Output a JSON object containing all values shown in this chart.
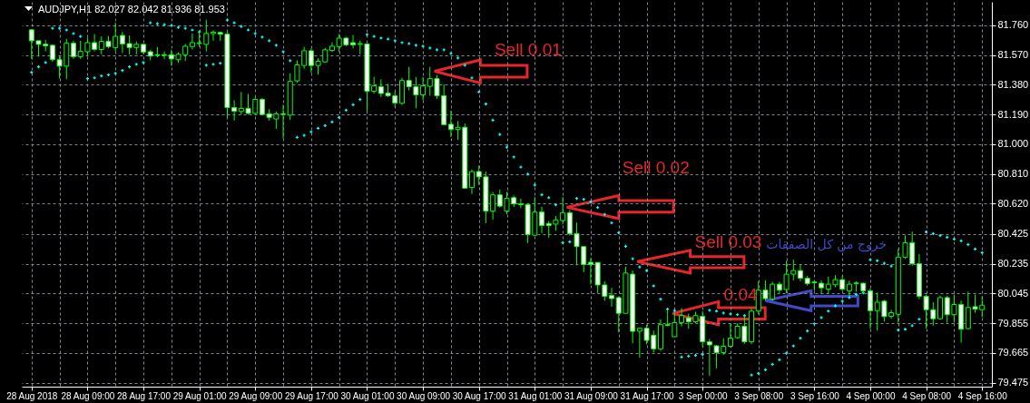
{
  "chart_data": {
    "type": "candlestick",
    "title": "AUDJPY,H1 82.027 82.042 81.936 81.953",
    "categories": [
      "28 Aug 2018",
      null,
      null,
      null,
      null,
      null,
      null,
      null,
      "28 Aug 09:00",
      null,
      null,
      null,
      null,
      null,
      null,
      null,
      "28 Aug 17:00",
      null,
      null,
      null,
      null,
      null,
      null,
      null,
      "29 Aug 01:00",
      null,
      null,
      null,
      null,
      null,
      null,
      null,
      "29 Aug 09:00",
      null,
      null,
      null,
      null,
      null,
      null,
      null,
      "29 Aug 17:00",
      null,
      null,
      null,
      null,
      null,
      null,
      null,
      "30 Aug 01:00",
      null,
      null,
      null,
      null,
      null,
      null,
      null,
      "30 Aug 09:00",
      null,
      null,
      null,
      null,
      null,
      null,
      null,
      "30 Aug 17:00",
      null,
      null,
      null,
      null,
      null,
      null,
      null,
      "31 Aug 01:00",
      null,
      null,
      null,
      null,
      null,
      null,
      null,
      "31 Aug 09:00",
      null,
      null,
      null,
      null,
      null,
      null,
      null,
      "31 Aug 17:00",
      null,
      null,
      null,
      null,
      null,
      null,
      null,
      "3 Sep 00:00",
      null,
      null,
      null,
      null,
      null,
      null,
      null,
      "3 Sep 08:00",
      null,
      null,
      null,
      null,
      null,
      null,
      null,
      "3 Sep 16:00",
      null,
      null,
      null,
      null,
      null,
      null,
      null,
      "4 Sep 00:00",
      null,
      null,
      null,
      null,
      null,
      null,
      null,
      "4 Sep 08:00",
      null,
      null,
      null,
      null,
      null,
      null,
      null,
      "4 Sep 16:00"
    ],
    "ohlc": [
      [
        81.731,
        81.737,
        81.545,
        81.661
      ],
      [
        81.661,
        81.664,
        81.56,
        81.638
      ],
      [
        81.639,
        81.666,
        81.593,
        81.629
      ],
      [
        81.632,
        81.638,
        81.526,
        81.54
      ],
      [
        81.54,
        81.564,
        81.42,
        81.499
      ],
      [
        81.499,
        81.674,
        81.415,
        81.645
      ],
      [
        81.645,
        81.661,
        81.545,
        81.56
      ],
      [
        81.56,
        81.661,
        81.545,
        81.593
      ],
      [
        81.591,
        81.68,
        81.564,
        81.649
      ],
      [
        81.649,
        81.704,
        81.593,
        81.606
      ],
      [
        81.606,
        81.689,
        81.574,
        81.657
      ],
      [
        81.657,
        81.691,
        81.612,
        81.624
      ],
      [
        81.618,
        81.776,
        81.593,
        81.689
      ],
      [
        81.695,
        81.718,
        81.583,
        81.641
      ],
      [
        81.643,
        81.695,
        81.574,
        81.618
      ],
      [
        81.618,
        81.657,
        81.574,
        81.638
      ],
      [
        81.638,
        81.641,
        81.574,
        81.589
      ],
      [
        81.591,
        81.603,
        81.536,
        81.563
      ],
      [
        81.572,
        81.622,
        81.555,
        81.568
      ],
      [
        81.572,
        81.593,
        81.545,
        81.568
      ],
      [
        81.572,
        81.603,
        81.501,
        81.545
      ],
      [
        81.54,
        81.587,
        81.52,
        81.574
      ],
      [
        81.572,
        81.641,
        81.532,
        81.626
      ],
      [
        81.624,
        81.708,
        81.606,
        81.649
      ],
      [
        81.643,
        81.724,
        81.622,
        81.647
      ],
      [
        81.638,
        81.795,
        81.593,
        81.708
      ],
      [
        81.707,
        81.727,
        81.661,
        81.716
      ],
      [
        81.714,
        81.718,
        81.661,
        81.703
      ],
      [
        81.703,
        81.718,
        81.165,
        81.234
      ],
      [
        81.234,
        81.28,
        81.151,
        81.21
      ],
      [
        81.209,
        81.334,
        81.19,
        81.229
      ],
      [
        81.229,
        81.321,
        81.19,
        81.197
      ],
      [
        81.197,
        81.299,
        81.19,
        81.286
      ],
      [
        81.286,
        81.295,
        81.184,
        81.19
      ],
      [
        81.194,
        81.223,
        81.151,
        81.171
      ],
      [
        81.161,
        81.209,
        81.098,
        81.194
      ],
      [
        81.194,
        81.253,
        81.036,
        81.19
      ],
      [
        81.186,
        81.453,
        81.155,
        81.401
      ],
      [
        81.405,
        81.536,
        81.392,
        81.507
      ],
      [
        81.503,
        81.622,
        81.482,
        81.597
      ],
      [
        81.597,
        81.612,
        81.455,
        81.503
      ],
      [
        81.503,
        81.549,
        81.445,
        81.53
      ],
      [
        81.526,
        81.616,
        81.52,
        81.603
      ],
      [
        81.599,
        81.651,
        81.589,
        81.626
      ],
      [
        81.624,
        81.704,
        81.589,
        81.678
      ],
      [
        81.678,
        81.685,
        81.626,
        81.635
      ],
      [
        81.649,
        81.697,
        81.612,
        81.635
      ],
      [
        81.638,
        81.662,
        81.574,
        81.643
      ],
      [
        81.641,
        81.645,
        81.209,
        81.338
      ],
      [
        81.338,
        81.43,
        81.324,
        81.373
      ],
      [
        81.367,
        81.415,
        81.301,
        81.324
      ],
      [
        81.327,
        81.386,
        81.301,
        81.309
      ],
      [
        81.309,
        81.338,
        81.238,
        81.263
      ],
      [
        81.261,
        81.424,
        81.252,
        81.407
      ],
      [
        81.407,
        81.494,
        81.344,
        81.367
      ],
      [
        81.367,
        81.43,
        81.229,
        81.315
      ],
      [
        81.315,
        81.43,
        81.28,
        81.373
      ],
      [
        81.37,
        81.494,
        81.309,
        81.419
      ],
      [
        81.419,
        81.443,
        81.29,
        81.309
      ],
      [
        81.309,
        81.382,
        81.123,
        81.125
      ],
      [
        81.127,
        81.213,
        81.046,
        81.094
      ],
      [
        81.094,
        81.148,
        81.027,
        81.108
      ],
      [
        81.108,
        81.132,
        80.714,
        80.719
      ],
      [
        80.723,
        80.839,
        80.681,
        80.825
      ],
      [
        80.825,
        80.863,
        80.739,
        80.791
      ],
      [
        80.791,
        80.825,
        80.495,
        80.572
      ],
      [
        80.572,
        80.695,
        80.518,
        80.676
      ],
      [
        80.676,
        80.71,
        80.595,
        80.604
      ],
      [
        80.572,
        80.695,
        80.552,
        80.653
      ],
      [
        80.658,
        80.672,
        80.598,
        80.618
      ],
      [
        80.618,
        80.653,
        80.591,
        80.614
      ],
      [
        80.614,
        80.624,
        80.368,
        80.422
      ],
      [
        80.418,
        80.662,
        80.412,
        80.566
      ],
      [
        80.566,
        80.601,
        80.431,
        80.48
      ],
      [
        80.493,
        80.509,
        80.403,
        80.48
      ],
      [
        80.489,
        80.541,
        80.447,
        80.516
      ],
      [
        80.512,
        80.662,
        80.489,
        80.562
      ],
      [
        80.562,
        80.579,
        80.416,
        80.428
      ],
      [
        80.428,
        80.499,
        80.226,
        80.345
      ],
      [
        80.345,
        80.349,
        80.182,
        80.231
      ],
      [
        80.245,
        80.272,
        80.105,
        80.23
      ],
      [
        80.244,
        80.244,
        80.048,
        80.1
      ],
      [
        80.1,
        80.124,
        79.999,
        80.028
      ],
      [
        80.034,
        80.082,
        79.961,
        80.013
      ],
      [
        80.019,
        80.028,
        79.798,
        79.919
      ],
      [
        79.919,
        80.217,
        79.919,
        80.176
      ],
      [
        80.169,
        80.192,
        79.727,
        79.804
      ],
      [
        79.804,
        79.827,
        79.635,
        79.823
      ],
      [
        79.823,
        79.846,
        79.721,
        79.746
      ],
      [
        79.779,
        79.808,
        79.668,
        79.692
      ],
      [
        79.692,
        79.881,
        79.679,
        79.846
      ],
      [
        79.846,
        79.938,
        79.836,
        79.842
      ],
      [
        79.769,
        79.923,
        79.769,
        79.859
      ],
      [
        79.859,
        79.952,
        79.836,
        79.904
      ],
      [
        79.89,
        79.917,
        79.821,
        79.865
      ],
      [
        79.865,
        79.929,
        79.855,
        79.904
      ],
      [
        79.9,
        79.933,
        79.705,
        79.737
      ],
      [
        79.737,
        79.756,
        79.52,
        79.717
      ],
      [
        79.711,
        79.717,
        79.567,
        79.668
      ],
      [
        79.668,
        79.76,
        79.654,
        79.708
      ],
      [
        79.708,
        79.855,
        79.702,
        79.76
      ],
      [
        79.763,
        79.855,
        79.756,
        79.836
      ],
      [
        79.836,
        79.904,
        79.725,
        79.737
      ],
      [
        79.737,
        79.952,
        79.721,
        79.933
      ],
      [
        79.933,
        80.124,
        79.913,
        80.067
      ],
      [
        80.067,
        80.13,
        79.999,
        80.013
      ],
      [
        80.009,
        80.119,
        79.999,
        80.105
      ],
      [
        80.105,
        80.12,
        80.048,
        80.067
      ],
      [
        80.071,
        80.255,
        80.048,
        80.169
      ],
      [
        80.169,
        80.263,
        80.13,
        80.192
      ],
      [
        80.192,
        80.234,
        80.124,
        80.143
      ],
      [
        80.143,
        80.159,
        80.096,
        80.109
      ],
      [
        80.119,
        80.13,
        80.063,
        80.115
      ],
      [
        80.111,
        80.13,
        80.042,
        80.082
      ],
      [
        80.073,
        80.153,
        80.042,
        80.105
      ],
      [
        80.101,
        80.163,
        80.086,
        80.134
      ],
      [
        80.134,
        80.159,
        80.063,
        80.073
      ],
      [
        80.063,
        80.128,
        80.028,
        80.105
      ],
      [
        80.109,
        80.124,
        80.057,
        80.113
      ],
      [
        80.111,
        80.115,
        80.048,
        80.063
      ],
      [
        80.063,
        80.077,
        79.821,
        79.936
      ],
      [
        79.936,
        80.051,
        79.808,
        79.99
      ],
      [
        79.996,
        80.005,
        79.865,
        79.898
      ],
      [
        79.9,
        79.942,
        79.884,
        79.923
      ],
      [
        79.913,
        80.332,
        79.859,
        80.278
      ],
      [
        80.278,
        80.416,
        80.268,
        80.37
      ],
      [
        80.37,
        80.441,
        80.224,
        80.236
      ],
      [
        80.236,
        80.297,
        80.009,
        80.028
      ],
      [
        80.028,
        80.038,
        79.821,
        79.942
      ],
      [
        79.942,
        79.99,
        79.84,
        79.884
      ],
      [
        79.884,
        80.032,
        79.877,
        80.019
      ],
      [
        80.019,
        80.032,
        79.859,
        79.91
      ],
      [
        79.91,
        80.038,
        79.859,
        79.975
      ],
      [
        79.975,
        80.0,
        79.731,
        79.817
      ],
      [
        79.821,
        80.057,
        79.817,
        79.956
      ],
      [
        79.961,
        80.038,
        79.923,
        79.946
      ],
      [
        79.942,
        80.028,
        79.894,
        79.971
      ]
    ],
    "color": "#00ff00",
    "colors": [
      "#ffffff",
      "#ffffff",
      "#ffffff",
      "#ffffff",
      "#ffffff",
      "#000000",
      "#ffffff",
      "#000000",
      "#000000",
      "#ffffff",
      "#000000",
      "#ffffff",
      "#000000",
      "#ffffff",
      "#ffffff",
      "#000000",
      "#ffffff",
      "#ffffff",
      "#ffffff",
      "#ffffff",
      "#ffffff",
      "#000000",
      "#000000",
      "#000000",
      "#000000",
      "#000000",
      "#000000",
      "#ffffff",
      "#ffffff",
      "#ffffff",
      "#000000",
      "#ffffff",
      "#000000",
      "#ffffff",
      "#ffffff",
      "#000000",
      "#ffffff",
      "#000000",
      "#000000",
      "#000000",
      "#ffffff",
      "#000000",
      "#000000",
      "#000000",
      "#000000",
      "#ffffff",
      "#ffffff",
      "#000000",
      "#ffffff",
      "#000000",
      "#ffffff",
      "#ffffff",
      "#ffffff",
      "#000000",
      "#ffffff",
      "#ffffff",
      "#000000",
      "#000000",
      "#ffffff",
      "#ffffff",
      "#ffffff",
      "#000000",
      "#ffffff",
      "#000000",
      "#ffffff",
      "#ffffff",
      "#000000",
      "#ffffff",
      "#000000",
      "#ffffff",
      "#ffffff",
      "#ffffff",
      "#000000",
      "#ffffff",
      "#ffffff",
      "#000000",
      "#000000",
      "#ffffff",
      "#ffffff",
      "#ffffff",
      "#ffffff",
      "#ffffff",
      "#ffffff",
      "#ffffff",
      "#ffffff",
      "#000000",
      "#ffffff",
      "#000000",
      "#ffffff",
      "#ffffff",
      "#000000",
      "#ffffff",
      "#000000",
      "#000000",
      "#ffffff",
      "#000000",
      "#ffffff",
      "#ffffff",
      "#ffffff",
      "#000000",
      "#000000",
      "#000000",
      "#ffffff",
      "#000000",
      "#000000",
      "#ffffff",
      "#000000",
      "#ffffff",
      "#000000",
      "#000000",
      "#ffffff",
      "#ffffff",
      "#ffffff",
      "#ffffff",
      "#000000",
      "#000000",
      "#ffffff",
      "#000000",
      "#000000",
      "#ffffff",
      "#ffffff",
      "#000000",
      "#ffffff",
      "#000000",
      "#000000",
      "#000000",
      "#ffffff",
      "#ffffff",
      "#ffffff",
      "#ffffff",
      "#000000",
      "#ffffff",
      "#000000",
      "#ffffff",
      "#000000",
      "#ffffff",
      "#000000"
    ],
    "series": [
      {
        "type": "scatter",
        "color": "#00ffff",
        "values": [
          81.459,
          81.494,
          81.522,
          81.741,
          81.741,
          81.73,
          81.707,
          81.689,
          81.419,
          81.424,
          81.436,
          81.443,
          81.453,
          81.471,
          81.494,
          81.511,
          81.522,
          81.776,
          81.77,
          81.764,
          81.759,
          81.747,
          81.741,
          81.73,
          81.718,
          81.505,
          81.511,
          81.517,
          81.793,
          81.776,
          81.753,
          81.73,
          81.707,
          81.684,
          81.661,
          81.632,
          81.591,
          81.534,
          81.044,
          81.056,
          81.079,
          81.102,
          81.119,
          81.142,
          81.171,
          81.217,
          81.252,
          81.286,
          81.701,
          81.689,
          81.678,
          81.672,
          81.661,
          81.649,
          81.643,
          81.632,
          81.626,
          81.615,
          81.603,
          81.603,
          81.58,
          81.551,
          81.505,
          81.424,
          81.334,
          81.257,
          81.154,
          81.062,
          80.981,
          80.918,
          80.854,
          80.808,
          80.739,
          80.676,
          80.658,
          80.612,
          80.37,
          80.376,
          80.653,
          80.647,
          80.631,
          80.595,
          80.551,
          80.497,
          80.434,
          80.347,
          80.267,
          80.215,
          80.192,
          80.094,
          80.009,
          79.946,
          79.936,
          79.639,
          79.645,
          79.65,
          79.656,
          79.938,
          79.933,
          79.921,
          79.915,
          79.91,
          79.904,
          79.525,
          79.535,
          79.558,
          79.593,
          79.622,
          79.664,
          79.71,
          79.76,
          79.806,
          79.852,
          79.892,
          79.933,
          79.967,
          79.996,
          80.019,
          80.04,
          80.05,
          80.261,
          80.255,
          80.238,
          80.221,
          79.812,
          79.817,
          79.84,
          79.881,
          80.439,
          80.428,
          80.416,
          80.405,
          80.393,
          80.382,
          80.359,
          80.33,
          80.307
        ]
      }
    ],
    "ylim": [
      79.45,
      81.91
    ],
    "yticks": [
      {
        "value": 79.475,
        "label": "79.475"
      },
      {
        "value": 79.665,
        "label": "79.665"
      },
      {
        "value": 79.855,
        "label": "79.855"
      },
      {
        "value": 80.045,
        "label": "80.045"
      },
      {
        "value": 80.235,
        "label": "80.235"
      },
      {
        "value": 80.425,
        "label": "80.425"
      },
      {
        "value": 80.62,
        "label": "80.620"
      },
      {
        "value": 80.81,
        "label": "80.810"
      },
      {
        "value": 81.0,
        "label": "81.000"
      },
      {
        "value": 81.19,
        "label": "81.190"
      },
      {
        "value": 81.38,
        "label": "81.380"
      },
      {
        "value": 81.57,
        "label": "81.570"
      },
      {
        "value": 81.76,
        "label": "81.760"
      }
    ],
    "grid": true,
    "marker": "cross",
    "annotations": [
      "Sell 0.01",
      "Sell 0.02",
      "Sell 0.03",
      "0.04",
      "خروج من كل الصفقات"
    ]
  }
}
